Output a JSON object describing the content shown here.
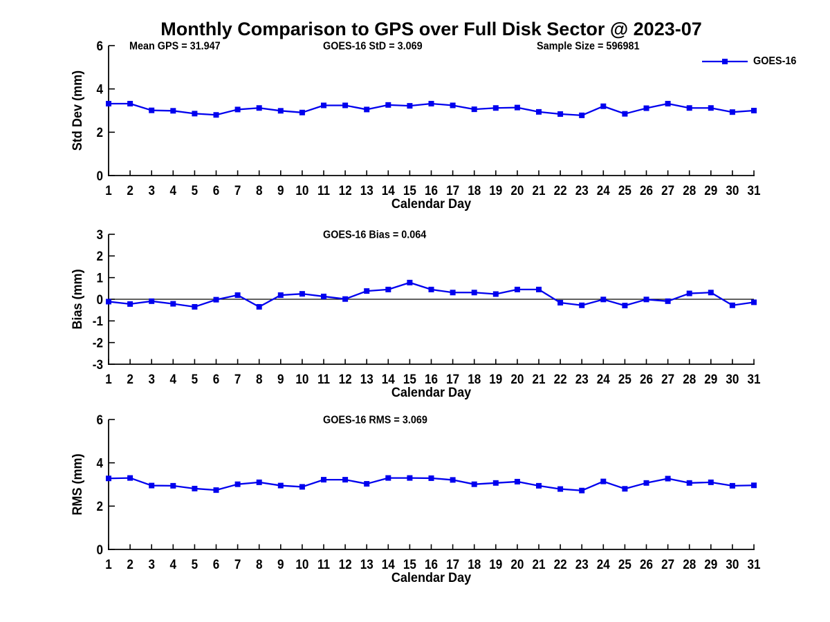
{
  "title": "Monthly Comparison to GPS over Full Disk Sector @ 2023-07",
  "legend": {
    "label": "GOES-16"
  },
  "colors": {
    "line": "#0000ee",
    "axis": "#000000",
    "zero_line": "#000000"
  },
  "chart_data": [
    {
      "type": "line",
      "name": "std-dev",
      "ylabel": "Std Dev (mm)",
      "xlabel": "Calendar Day",
      "ylim": [
        0,
        6
      ],
      "yticks": [
        0,
        2,
        4,
        6
      ],
      "x": [
        1,
        2,
        3,
        4,
        5,
        6,
        7,
        8,
        9,
        10,
        11,
        12,
        13,
        14,
        15,
        16,
        17,
        18,
        19,
        20,
        21,
        22,
        23,
        24,
        25,
        26,
        27,
        28,
        29,
        30,
        31
      ],
      "series": [
        {
          "name": "GOES-16",
          "values": [
            3.32,
            3.32,
            3.01,
            2.99,
            2.86,
            2.8,
            3.05,
            3.12,
            2.99,
            2.91,
            3.24,
            3.24,
            3.05,
            3.26,
            3.22,
            3.32,
            3.24,
            3.06,
            3.12,
            3.14,
            2.94,
            2.84,
            2.78,
            3.2,
            2.85,
            3.11,
            3.32,
            3.12,
            3.12,
            2.93,
            3.0
          ]
        }
      ],
      "annotations": [
        "Mean GPS = 31.947",
        "GOES-16 StD = 3.069",
        "Sample Size = 596981"
      ],
      "zero_line": false,
      "legend_position": "top-right",
      "grid": false
    },
    {
      "type": "line",
      "name": "bias",
      "ylabel": "Bias (mm)",
      "xlabel": "Calendar Day",
      "ylim": [
        -3,
        3
      ],
      "yticks": [
        3,
        2,
        1,
        0,
        -1,
        -2,
        -3
      ],
      "x": [
        1,
        2,
        3,
        4,
        5,
        6,
        7,
        8,
        9,
        10,
        11,
        12,
        13,
        14,
        15,
        16,
        17,
        18,
        19,
        20,
        21,
        22,
        23,
        24,
        25,
        26,
        27,
        28,
        29,
        30,
        31
      ],
      "series": [
        {
          "name": "GOES-16",
          "values": [
            -0.11,
            -0.22,
            -0.09,
            -0.21,
            -0.35,
            -0.02,
            0.19,
            -0.35,
            0.19,
            0.25,
            0.13,
            0.01,
            0.38,
            0.45,
            0.77,
            0.45,
            0.31,
            0.31,
            0.24,
            0.45,
            0.45,
            -0.16,
            -0.28,
            -0.01,
            -0.29,
            -0.01,
            -0.09,
            0.27,
            0.31,
            -0.28,
            -0.14
          ]
        }
      ],
      "annotations": [
        "GOES-16 Bias = 0.064"
      ],
      "zero_line": true,
      "grid": false
    },
    {
      "type": "line",
      "name": "rms",
      "ylabel": "RMS (mm)",
      "xlabel": "Calendar Day",
      "ylim": [
        0,
        6
      ],
      "yticks": [
        0,
        2,
        4,
        6
      ],
      "x": [
        1,
        2,
        3,
        4,
        5,
        6,
        7,
        8,
        9,
        10,
        11,
        12,
        13,
        14,
        15,
        16,
        17,
        18,
        19,
        20,
        21,
        22,
        23,
        24,
        25,
        26,
        27,
        28,
        29,
        30,
        31
      ],
      "series": [
        {
          "name": "GOES-16",
          "values": [
            3.28,
            3.3,
            2.95,
            2.94,
            2.81,
            2.74,
            3.01,
            3.1,
            2.95,
            2.89,
            3.22,
            3.22,
            3.03,
            3.3,
            3.3,
            3.29,
            3.21,
            3.01,
            3.07,
            3.13,
            2.94,
            2.79,
            2.72,
            3.14,
            2.8,
            3.07,
            3.27,
            3.07,
            3.1,
            2.94,
            2.96
          ]
        }
      ],
      "annotations": [
        "GOES-16 RMS = 3.069"
      ],
      "zero_line": false,
      "grid": false
    }
  ]
}
